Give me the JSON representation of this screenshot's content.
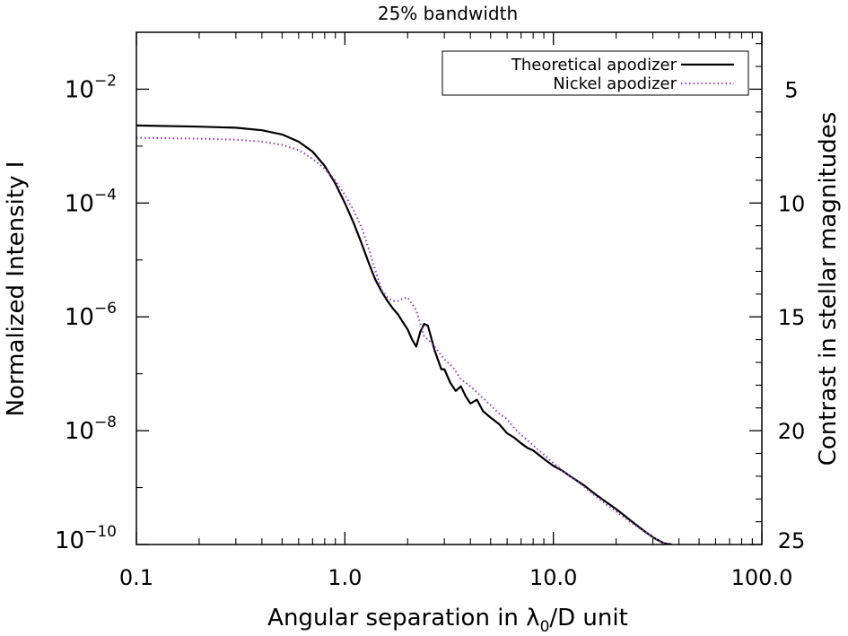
{
  "chart_data": {
    "type": "line",
    "title": "25% bandwidth",
    "xlabel_prefix": "Angular separation in λ",
    "xlabel_sub": "0",
    "xlabel_suffix": "/D unit",
    "ylabel": "Normalized Intensity I",
    "y2label": "Contrast in stellar magnitudes",
    "xscale": "log",
    "yscale": "log",
    "xlim": [
      0.1,
      100
    ],
    "ylim": [
      1e-10,
      0.1
    ],
    "y2lim": [
      25,
      2.5
    ],
    "xticks": [
      {
        "value": 0.1,
        "label": "0.1"
      },
      {
        "value": 1,
        "label": "1.0"
      },
      {
        "value": 10,
        "label": "10.0"
      },
      {
        "value": 100,
        "label": "100.0"
      }
    ],
    "yticks": [
      {
        "value": 0.01,
        "base": "10",
        "exp": "−2"
      },
      {
        "value": 0.0001,
        "base": "10",
        "exp": "−4"
      },
      {
        "value": 1e-06,
        "base": "10",
        "exp": "−6"
      },
      {
        "value": 1e-08,
        "base": "10",
        "exp": "−8"
      },
      {
        "value": 1e-10,
        "base": "10",
        "exp": "−10"
      }
    ],
    "y2ticks": [
      {
        "value": 5,
        "label": "5"
      },
      {
        "value": 10,
        "label": "10"
      },
      {
        "value": 15,
        "label": "15"
      },
      {
        "value": 20,
        "label": "20"
      },
      {
        "value": 25,
        "label": "25"
      }
    ],
    "legend_position": "top-right",
    "grid": false,
    "series": [
      {
        "name": "Theoretical apodizer",
        "color": "#000000",
        "style": "solid",
        "x": [
          0.1,
          0.2,
          0.3,
          0.4,
          0.5,
          0.6,
          0.7,
          0.8,
          0.9,
          1.0,
          1.1,
          1.2,
          1.3,
          1.4,
          1.5,
          1.6,
          1.7,
          1.8,
          1.9,
          2.0,
          2.1,
          2.2,
          2.3,
          2.4,
          2.5,
          2.7,
          2.9,
          3.0,
          3.2,
          3.4,
          3.6,
          3.8,
          4.0,
          4.3,
          4.6,
          5.0,
          5.5,
          6.0,
          6.5,
          7.0,
          7.5,
          8.0,
          9.0,
          10.0,
          11.0,
          12.0,
          14.0,
          16.0,
          18.0,
          20.0,
          22.0,
          25.0,
          28.0,
          31.0,
          34.0,
          37.0
        ],
        "y": [
          0.0023,
          0.0022,
          0.0021,
          0.0019,
          0.0016,
          0.0012,
          0.0008,
          0.00045,
          0.00022,
          0.0001,
          4.5e-05,
          2e-05,
          9e-06,
          4.5e-06,
          2.8e-06,
          1.9e-06,
          1.4e-06,
          1.1e-06,
          8e-07,
          6e-07,
          4e-07,
          3e-07,
          5.5e-07,
          7.5e-07,
          7e-07,
          2.5e-07,
          1.2e-07,
          1.2e-07,
          7e-08,
          5e-08,
          6e-08,
          4e-08,
          3e-08,
          3.5e-08,
          2.2e-08,
          1.7e-08,
          1.3e-08,
          9e-09,
          7.5e-09,
          6e-09,
          5e-09,
          4.5e-09,
          3.2e-09,
          2.4e-09,
          2e-09,
          1.6e-09,
          1.1e-09,
          7.5e-10,
          5.5e-10,
          4.2e-10,
          3.2e-10,
          2.2e-10,
          1.6e-10,
          1.25e-10,
          1.05e-10,
          1e-10
        ]
      },
      {
        "name": "Nickel apodizer",
        "color": "#9933cc",
        "style": "dotted",
        "x": [
          0.1,
          0.2,
          0.3,
          0.4,
          0.5,
          0.6,
          0.7,
          0.8,
          0.9,
          1.0,
          1.1,
          1.2,
          1.3,
          1.4,
          1.5,
          1.6,
          1.7,
          1.8,
          1.9,
          2.0,
          2.2,
          2.4,
          2.6,
          2.8,
          3.0,
          3.3,
          3.6,
          4.0,
          4.5,
          5.0,
          5.5,
          6.0,
          6.5,
          7.0,
          8.0,
          9.0,
          10.0,
          11.0,
          12.0,
          14.0,
          16.0,
          18.0,
          20.0,
          23.0,
          26.0,
          30.0,
          34.0,
          37.0
        ],
        "y": [
          0.0014,
          0.00135,
          0.0013,
          0.0012,
          0.00105,
          0.00085,
          0.0006,
          0.0004,
          0.00025,
          0.00014,
          7.5e-05,
          3.8e-05,
          1.6e-05,
          6.5e-06,
          3e-06,
          2.2e-06,
          1.9e-06,
          1.9e-06,
          2.1e-06,
          2.2e-06,
          1.3e-06,
          4.5e-07,
          3.5e-07,
          2.5e-07,
          1.8e-07,
          1.3e-07,
          8e-08,
          6e-08,
          4e-08,
          2.8e-08,
          2e-08,
          1.6e-08,
          1.1e-08,
          8.5e-09,
          5.5e-09,
          3.8e-09,
          2.7e-09,
          2e-09,
          1.6e-09,
          1.05e-09,
          7e-10,
          5e-10,
          3.8e-10,
          2.6e-10,
          1.9e-10,
          1.35e-10,
          1.05e-10,
          1e-10
        ]
      }
    ]
  }
}
